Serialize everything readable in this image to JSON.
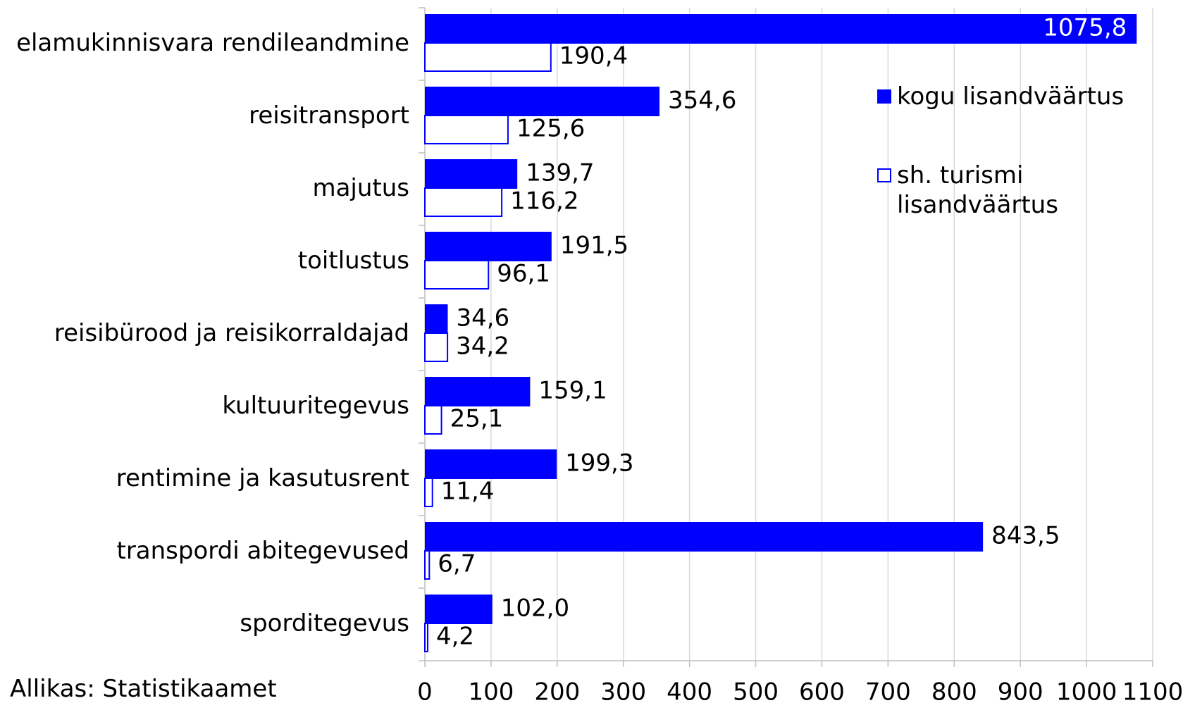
{
  "chart_data": {
    "type": "bar",
    "orientation": "horizontal",
    "categories": [
      "elamukinnisvara rendileandmine",
      "reisitransport",
      "majutus",
      "toitlustus",
      "reisibürood ja reisikorraldajad",
      "kultuuritegevus",
      "rentimine ja kasutusrent",
      "transpordi abitegevused",
      "sporditegevus"
    ],
    "series": [
      {
        "name": "kogu lisandväärtus",
        "color": "#0000ff",
        "values": [
          1075.8,
          354.6,
          139.7,
          191.5,
          34.6,
          159.1,
          199.3,
          843.5,
          102.0
        ],
        "value_labels": [
          "1075,8",
          "354,6",
          "139,7",
          "191,5",
          "34,6",
          "159,1",
          "199,3",
          "843,5",
          "102,0"
        ]
      },
      {
        "name": "sh. turismi lisandväärtus",
        "color": "#ffffff",
        "edgecolor": "#0000ff",
        "values": [
          190.4,
          125.6,
          116.2,
          96.1,
          34.2,
          25.1,
          11.4,
          6.7,
          4.2
        ],
        "value_labels": [
          "190,4",
          "125,6",
          "116,2",
          "96,1",
          "34,2",
          "25,1",
          "11,4",
          "6,7",
          "4,2"
        ]
      }
    ],
    "xlim": [
      0,
      1100
    ],
    "xticks": [
      0,
      100,
      200,
      300,
      400,
      500,
      600,
      700,
      800,
      900,
      1000,
      1100
    ],
    "grid": true,
    "note": "Allikas: Statistikaamet"
  }
}
